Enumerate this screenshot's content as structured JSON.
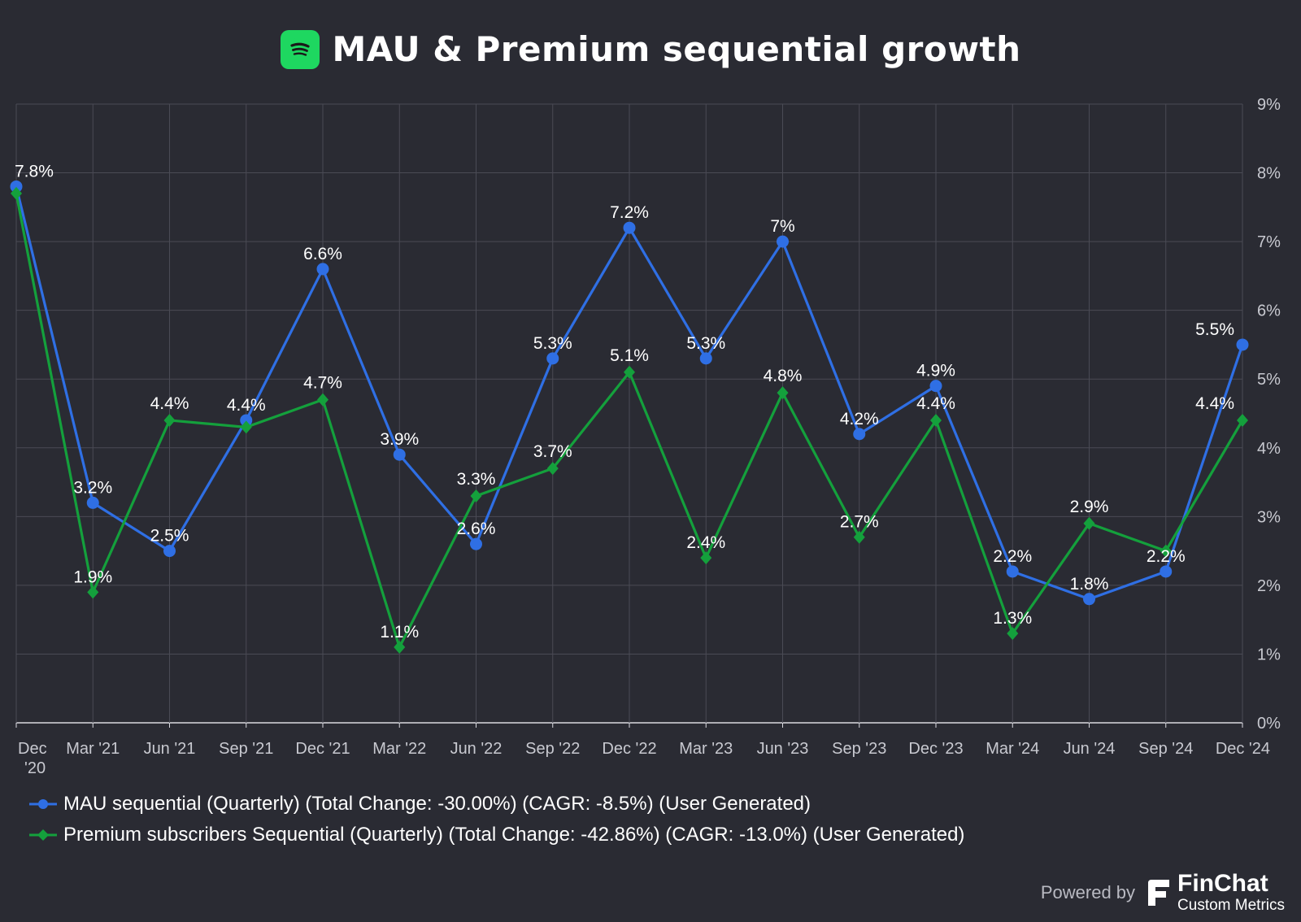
{
  "header": {
    "title": "MAU & Premium sequential growth",
    "logo_icon": "spotify-logo-icon",
    "logo_color": "#1ed760"
  },
  "chart_data": {
    "type": "line",
    "title": "MAU & Premium sequential growth",
    "categories": [
      "Dec '20",
      "Mar '21",
      "Jun '21",
      "Sep '21",
      "Dec '21",
      "Mar '22",
      "Jun '22",
      "Sep '22",
      "Dec '22",
      "Mar '23",
      "Jun '23",
      "Sep '23",
      "Dec '23",
      "Mar '24",
      "Jun '24",
      "Sep '24",
      "Dec '24"
    ],
    "series": [
      {
        "name": "MAU sequential (Quarterly) (Total Change: -30.00%) (CAGR: -8.5%) (User Generated)",
        "color": "#2f6fe4",
        "marker": "circle",
        "values": [
          7.8,
          3.2,
          2.5,
          4.4,
          6.6,
          3.9,
          2.6,
          5.3,
          7.2,
          5.3,
          7.0,
          4.2,
          4.9,
          2.2,
          1.8,
          2.2,
          5.5
        ],
        "labels": [
          "7.8%",
          "3.2%",
          "2.5%",
          "4.4%",
          "6.6%",
          "3.9%",
          "2.6%",
          "5.3%",
          "7.2%",
          "5.3%",
          "7%",
          "4.2%",
          "4.9%",
          "2.2%",
          "1.8%",
          "2.2%",
          "5.5%"
        ]
      },
      {
        "name": "Premium subscribers Sequential (Quarterly) (Total Change: -42.86%) (CAGR: -13.0%) (User Generated)",
        "color": "#14a03c",
        "marker": "diamond",
        "values": [
          7.7,
          1.9,
          4.4,
          4.3,
          4.7,
          1.1,
          3.3,
          3.7,
          5.1,
          2.4,
          4.8,
          2.7,
          4.4,
          1.3,
          2.9,
          2.5,
          4.4
        ],
        "labels": [
          "",
          "1.9%",
          "4.4%",
          "",
          "4.7%",
          "1.1%",
          "3.3%",
          "3.7%",
          "5.1%",
          "2.4%",
          "4.8%",
          "2.7%",
          "4.4%",
          "1.3%",
          "2.9%",
          "",
          "4.4%"
        ]
      }
    ],
    "y_axis": {
      "position": "right",
      "ylim": [
        0,
        9
      ],
      "ticks": [
        "0%",
        "1%",
        "2%",
        "3%",
        "4%",
        "5%",
        "6%",
        "7%",
        "8%",
        "9%"
      ]
    },
    "grid": true,
    "legend": "bottom-left"
  },
  "footer": {
    "powered_by": "Powered by",
    "brand_name": "FinChat",
    "brand_sub": "Custom Metrics",
    "brand_icon": "finchat-logo-icon"
  }
}
